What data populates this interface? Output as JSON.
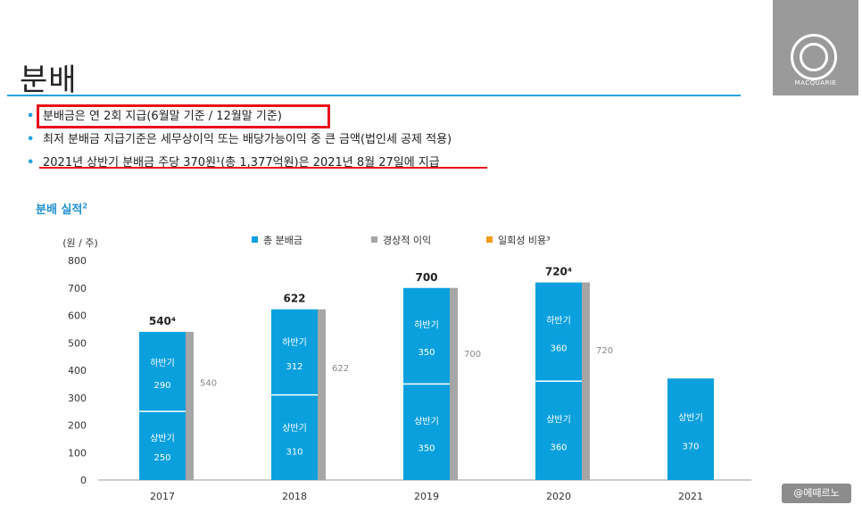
{
  "page": {
    "title": "분배",
    "bullets": [
      "분배금은 연 2회 지급(6월말 기준 / 12월말 기준)",
      "최저 분배금 지급기준은 세무상이익 또는 배당가능이익 중 큰 금액(법인세 공제 적용)",
      "2021년 상반기 분배금 주당 370원¹(총 1,377억원)은 2021년 8월 27일에 지급"
    ],
    "bullet_marker": "•",
    "logo_text": "MACQUARIE",
    "watermark": "@에떼르노"
  },
  "colors": {
    "accent": "#29a3dc",
    "bar_total": "#0aa0de",
    "bar_op": "#a6a6a6",
    "bar_onetime": "#f39c12",
    "highlight": "#e8111a",
    "title_blue": "#1f8fd0"
  },
  "chart_data": {
    "type": "bar",
    "title": "분배 실적",
    "title_sup": "2",
    "ylabel": "(원 / 주)",
    "ylim": [
      0,
      800
    ],
    "yticks": [
      0,
      100,
      200,
      300,
      400,
      500,
      600,
      700,
      800
    ],
    "categories": [
      "2017",
      "2018",
      "2019",
      "2020",
      "2021"
    ],
    "legend": [
      {
        "marker": "■",
        "label": "총 분배금",
        "color": "#0aa0de"
      },
      {
        "marker": "■",
        "label": "경상적 이익",
        "color": "#a6a6a6"
      },
      {
        "marker": "■",
        "label": "일회성 비용³",
        "color": "#f39c12"
      }
    ],
    "series": [
      {
        "name": "상반기",
        "values": [
          250,
          310,
          350,
          360,
          370
        ]
      },
      {
        "name": "하반기",
        "values": [
          290,
          312,
          350,
          360,
          null
        ]
      },
      {
        "name": "총 분배금",
        "values": [
          540,
          622,
          700,
          720,
          null
        ]
      },
      {
        "name": "경상적 이익",
        "values": [
          540,
          622,
          700,
          720,
          null
        ]
      }
    ],
    "total_labels": [
      "540⁴",
      "622",
      "700",
      "720⁴",
      ""
    ],
    "op_labels": [
      "540",
      "622",
      "700",
      "720",
      ""
    ],
    "h1_label": "상반기",
    "h2_label": "하반기"
  }
}
